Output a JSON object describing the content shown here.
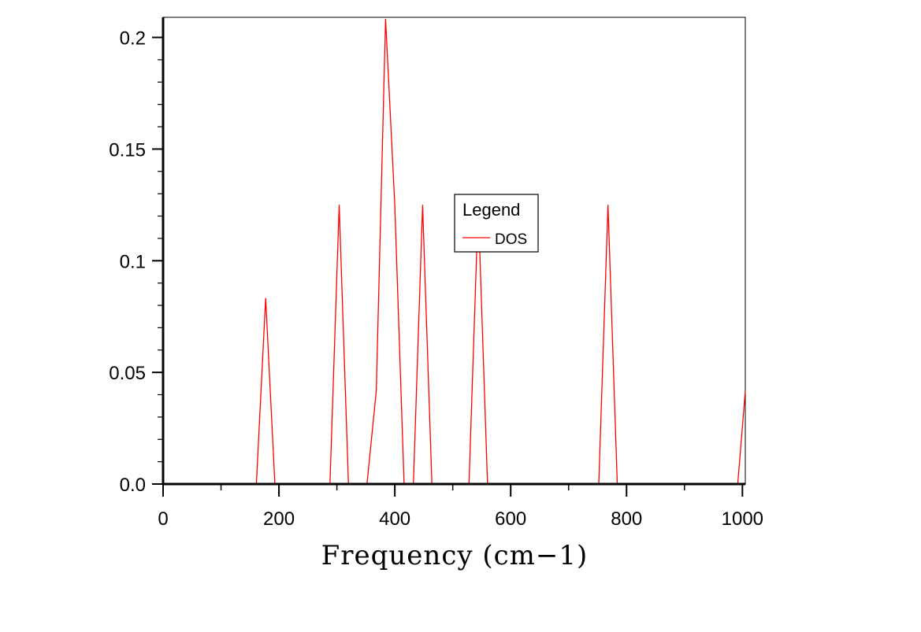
{
  "chart_data": {
    "type": "line",
    "title": "",
    "xlabel": "Frequency (cm−1)",
    "ylabel": "",
    "xlim": [
      0,
      1005
    ],
    "ylim": [
      0,
      0.209
    ],
    "grid": false,
    "legend": {
      "title": "Legend",
      "placement": "center",
      "entries": [
        "DOS"
      ]
    },
    "x_ticks": [
      {
        "value": 0,
        "label": "0"
      },
      {
        "value": 200,
        "label": "200"
      },
      {
        "value": 400,
        "label": "400"
      },
      {
        "value": 600,
        "label": "600"
      },
      {
        "value": 800,
        "label": "800"
      },
      {
        "value": 1000,
        "label": "1000"
      }
    ],
    "y_ticks": [
      {
        "value": 0,
        "label": "0.0"
      },
      {
        "value": 0.05,
        "label": "0.05"
      },
      {
        "value": 0.1,
        "label": "0.1"
      },
      {
        "value": 0.15,
        "label": "0.15"
      },
      {
        "value": 0.2,
        "label": "0.2"
      }
    ],
    "series": [
      {
        "name": "DOS",
        "color": "#ff0000",
        "x": [
          0,
          161,
          177,
          193,
          288,
          304,
          320,
          352,
          368,
          384,
          400,
          416,
          432,
          448,
          464,
          528,
          544,
          560,
          752,
          768,
          784,
          992,
          1005
        ],
        "y": [
          0,
          0,
          0.0833,
          0,
          0,
          0.125,
          0,
          0,
          0.0417,
          0.2083,
          0.125,
          0,
          0,
          0.125,
          0,
          0,
          0.125,
          0,
          0,
          0.125,
          0,
          0,
          0.0417
        ]
      }
    ]
  }
}
